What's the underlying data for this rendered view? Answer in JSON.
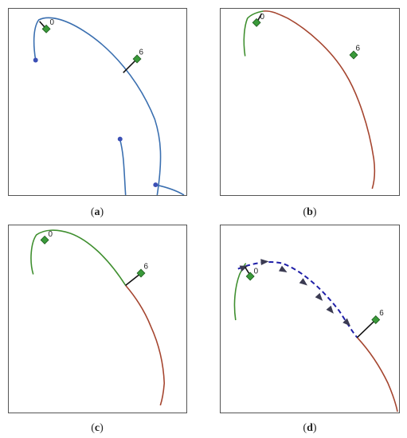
{
  "colors": {
    "blue_track": "#3a6fb0",
    "green_track": "#3f8f2f",
    "brown_track": "#a5452f",
    "dashed_path": "#1f1fa8",
    "arrow_marker": "#3b3b52",
    "node_fill": "#3a9a3a",
    "node_stroke": "#1c5a1c",
    "endpoint_dot": "#3b4fb5",
    "connector": "#111111"
  },
  "panels": [
    {
      "id": "a",
      "caption": {
        "open": "(",
        "letter": "a",
        "close": ")"
      },
      "marker_labels": [
        "0",
        "6"
      ]
    },
    {
      "id": "b",
      "caption": {
        "open": "(",
        "letter": "b",
        "close": ")"
      },
      "marker_labels": [
        "0",
        "6"
      ]
    },
    {
      "id": "c",
      "caption": {
        "open": "(",
        "letter": "c",
        "close": ")"
      },
      "marker_labels": [
        "0",
        "6"
      ]
    },
    {
      "id": "d",
      "caption": {
        "open": "(",
        "letter": "d",
        "close": ")"
      },
      "marker_labels": [
        "0",
        "6"
      ]
    }
  ]
}
